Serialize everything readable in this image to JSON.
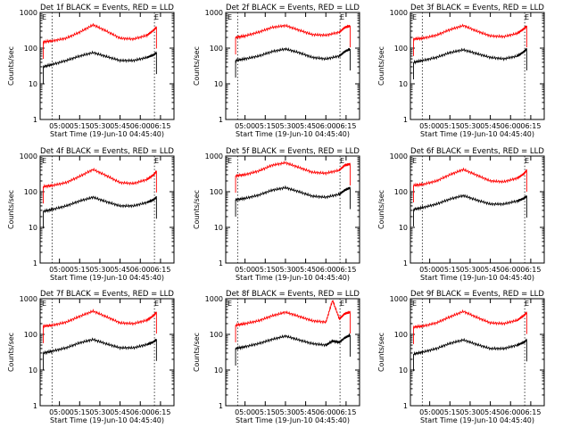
{
  "chart_data": [
    {
      "type": "line",
      "title": "Det 1f BLACK = Events, RED = LLD",
      "xlabel": "Start Time (19-Jun-10 04:45:40)",
      "ylabel": "Counts/sec",
      "xticks": [
        "05:00",
        "05:15",
        "05:30",
        "05:45",
        "06:00",
        "06:15"
      ],
      "yticks": [
        "1",
        "10",
        "100",
        "1000"
      ],
      "ylim": [
        1,
        1000
      ],
      "scale": "log",
      "annotations": [
        "E",
        "E"
      ],
      "x": [
        "04:48",
        "04:55",
        "05:05",
        "05:15",
        "05:25",
        "05:35",
        "05:45",
        "05:55",
        "06:05",
        "06:10",
        "06:12"
      ],
      "series": [
        {
          "color": "#ff0000",
          "values": [
            150,
            160,
            190,
            280,
            450,
            300,
            190,
            180,
            230,
            320,
            390
          ]
        },
        {
          "color": "#000000",
          "values": [
            30,
            35,
            45,
            60,
            75,
            58,
            45,
            45,
            55,
            65,
            75
          ]
        }
      ]
    },
    {
      "type": "line",
      "title": "Det 2f BLACK = Events, RED = LLD",
      "xlabel": "Start Time (19-Jun-10 04:45:40)",
      "ylabel": "Counts/sec",
      "xticks": [
        "05:00",
        "05:15",
        "05:30",
        "05:45",
        "06:00",
        "06:15"
      ],
      "yticks": [
        "1",
        "10",
        "100",
        "1000"
      ],
      "ylim": [
        1,
        1000
      ],
      "scale": "log",
      "annotations": [
        "E",
        "E"
      ],
      "x": [
        "04:53",
        "05:00",
        "05:10",
        "05:20",
        "05:30",
        "05:40",
        "05:50",
        "06:00",
        "06:10",
        "06:14",
        "06:18"
      ],
      "series": [
        {
          "color": "#ff0000",
          "values": [
            200,
            220,
            280,
            380,
            430,
            320,
            240,
            230,
            280,
            380,
            420
          ]
        },
        {
          "color": "#000000",
          "values": [
            45,
            50,
            60,
            80,
            95,
            75,
            55,
            50,
            60,
            80,
            95
          ]
        }
      ]
    },
    {
      "type": "line",
      "title": "Det 3f BLACK = Events, RED = LLD",
      "xlabel": "Start Time (19-Jun-10 04:45:40)",
      "ylabel": "Counts/sec",
      "xticks": [
        "05:00",
        "05:15",
        "05:30",
        "05:45",
        "06:00",
        "06:15"
      ],
      "yticks": [
        "1",
        "10",
        "100",
        "1000"
      ],
      "ylim": [
        1,
        1000
      ],
      "scale": "log",
      "annotations": [
        "E",
        "E"
      ],
      "x": [
        "04:48",
        "04:55",
        "05:05",
        "05:15",
        "05:25",
        "05:35",
        "05:45",
        "05:55",
        "06:05",
        "06:10",
        "06:12"
      ],
      "series": [
        {
          "color": "#ff0000",
          "values": [
            180,
            190,
            230,
            330,
            430,
            300,
            220,
            210,
            260,
            350,
            420
          ]
        },
        {
          "color": "#000000",
          "values": [
            40,
            45,
            55,
            75,
            90,
            70,
            55,
            50,
            60,
            80,
            95
          ]
        }
      ]
    },
    {
      "type": "line",
      "title": "Det 4f BLACK = Events, RED = LLD",
      "xlabel": "Start Time (19-Jun-10 04:45:40)",
      "ylabel": "Counts/sec",
      "xticks": [
        "05:00",
        "05:15",
        "05:30",
        "05:45",
        "06:00",
        "06:15"
      ],
      "yticks": [
        "1",
        "10",
        "100",
        "1000"
      ],
      "ylim": [
        1,
        1000
      ],
      "scale": "log",
      "annotations": [
        "E",
        "E"
      ],
      "x": [
        "04:48",
        "04:55",
        "05:05",
        "05:15",
        "05:25",
        "05:35",
        "05:45",
        "05:55",
        "06:05",
        "06:10",
        "06:12"
      ],
      "series": [
        {
          "color": "#ff0000",
          "values": [
            140,
            150,
            180,
            270,
            420,
            280,
            180,
            170,
            220,
            300,
            380
          ]
        },
        {
          "color": "#000000",
          "values": [
            28,
            32,
            40,
            55,
            70,
            52,
            40,
            40,
            50,
            60,
            70
          ]
        }
      ]
    },
    {
      "type": "line",
      "title": "Det 5f BLACK = Events, RED = LLD",
      "xlabel": "Start Time (19-Jun-10 04:45:40)",
      "ylabel": "Counts/sec",
      "xticks": [
        "05:00",
        "05:15",
        "05:30",
        "05:45",
        "06:00",
        "06:15"
      ],
      "yticks": [
        "1",
        "10",
        "100",
        "1000"
      ],
      "ylim": [
        1,
        1000
      ],
      "scale": "log",
      "annotations": [
        "E",
        "E"
      ],
      "x": [
        "04:53",
        "05:00",
        "05:10",
        "05:20",
        "05:30",
        "05:40",
        "05:50",
        "06:00",
        "06:10",
        "06:14",
        "06:18"
      ],
      "series": [
        {
          "color": "#ff0000",
          "values": [
            280,
            300,
            380,
            550,
            650,
            480,
            350,
            330,
            400,
            550,
            600
          ]
        },
        {
          "color": "#000000",
          "values": [
            60,
            65,
            80,
            110,
            130,
            100,
            75,
            70,
            85,
            110,
            130
          ]
        }
      ]
    },
    {
      "type": "line",
      "title": "Det 6f BLACK = Events, RED = LLD",
      "xlabel": "Start Time (19-Jun-10 04:45:40)",
      "ylabel": "Counts/sec",
      "xticks": [
        "05:00",
        "05:15",
        "05:30",
        "05:45",
        "06:00",
        "06:15"
      ],
      "yticks": [
        "1",
        "10",
        "100",
        "1000"
      ],
      "ylim": [
        1,
        1000
      ],
      "scale": "log",
      "annotations": [
        "E",
        "E"
      ],
      "x": [
        "04:48",
        "04:55",
        "05:05",
        "05:15",
        "05:25",
        "05:35",
        "05:45",
        "05:55",
        "06:05",
        "06:10",
        "06:12"
      ],
      "series": [
        {
          "color": "#ff0000",
          "values": [
            150,
            160,
            200,
            300,
            420,
            290,
            200,
            190,
            240,
            320,
            400
          ]
        },
        {
          "color": "#000000",
          "values": [
            32,
            36,
            45,
            62,
            78,
            58,
            45,
            45,
            55,
            65,
            75
          ]
        }
      ]
    },
    {
      "type": "line",
      "title": "Det 7f BLACK = Events, RED = LLD",
      "xlabel": "Start Time (19-Jun-10 04:45:40)",
      "ylabel": "Counts/sec",
      "xticks": [
        "05:00",
        "05:15",
        "05:30",
        "05:45",
        "06:00",
        "06:15"
      ],
      "yticks": [
        "1",
        "10",
        "100",
        "1000"
      ],
      "ylim": [
        1,
        1000
      ],
      "scale": "log",
      "annotations": [
        "E",
        "E"
      ],
      "x": [
        "04:48",
        "04:55",
        "05:05",
        "05:15",
        "05:25",
        "05:35",
        "05:45",
        "05:55",
        "06:05",
        "06:10",
        "06:12"
      ],
      "series": [
        {
          "color": "#ff0000",
          "values": [
            170,
            180,
            220,
            320,
            450,
            310,
            210,
            200,
            250,
            340,
            420
          ]
        },
        {
          "color": "#000000",
          "values": [
            30,
            34,
            42,
            58,
            72,
            54,
            42,
            42,
            52,
            62,
            72
          ]
        }
      ]
    },
    {
      "type": "line",
      "title": "Det 8f BLACK = Events, RED = LLD",
      "xlabel": "Start Time (19-Jun-10 04:45:40)",
      "ylabel": "Counts/sec",
      "xticks": [
        "05:00",
        "05:15",
        "05:30",
        "05:45",
        "06:00",
        "06:15"
      ],
      "yticks": [
        "1",
        "10",
        "100",
        "1000"
      ],
      "ylim": [
        1,
        1000
      ],
      "scale": "log",
      "annotations": [
        "E",
        "E"
      ],
      "x": [
        "04:53",
        "05:00",
        "05:10",
        "05:20",
        "05:30",
        "05:40",
        "05:50",
        "06:00",
        "06:05",
        "06:10",
        "06:14",
        "06:18"
      ],
      "series": [
        {
          "color": "#ff0000",
          "values": [
            180,
            200,
            240,
            330,
            420,
            320,
            240,
            220,
            900,
            270,
            380,
            420
          ]
        },
        {
          "color": "#000000",
          "values": [
            40,
            45,
            55,
            72,
            90,
            70,
            55,
            50,
            65,
            60,
            80,
            95
          ]
        }
      ]
    },
    {
      "type": "line",
      "title": "Det 9f BLACK = Events, RED = LLD",
      "xlabel": "Start Time (19-Jun-10 04:45:40)",
      "ylabel": "Counts/sec",
      "xticks": [
        "05:00",
        "05:15",
        "05:30",
        "05:45",
        "06:00",
        "06:15"
      ],
      "yticks": [
        "1",
        "10",
        "100",
        "1000"
      ],
      "ylim": [
        1,
        1000
      ],
      "scale": "log",
      "annotations": [
        "E",
        "E"
      ],
      "x": [
        "04:48",
        "04:55",
        "05:05",
        "05:15",
        "05:25",
        "05:35",
        "05:45",
        "05:55",
        "06:05",
        "06:10",
        "06:12"
      ],
      "series": [
        {
          "color": "#ff0000",
          "values": [
            160,
            170,
            210,
            310,
            440,
            300,
            210,
            200,
            250,
            340,
            410
          ]
        },
        {
          "color": "#000000",
          "values": [
            28,
            32,
            40,
            56,
            70,
            52,
            40,
            40,
            50,
            60,
            70
          ]
        }
      ]
    }
  ]
}
